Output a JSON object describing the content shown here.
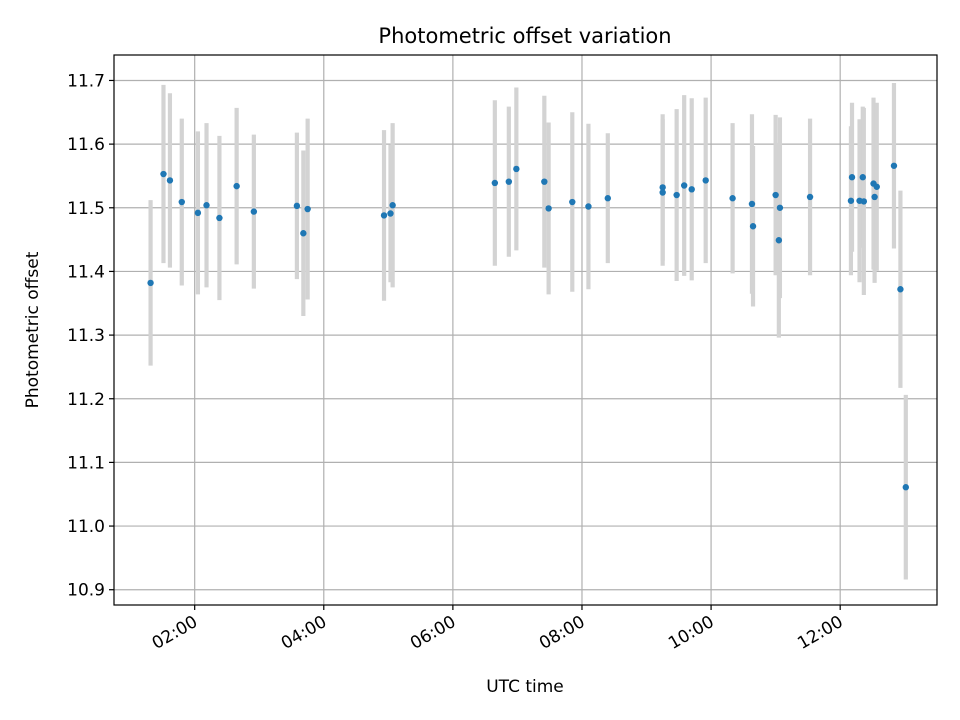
{
  "chart_data": {
    "type": "scatter",
    "title": "Photometric offset variation",
    "xlabel": "UTC time",
    "ylabel": "Photometric offset",
    "x_ticks": [
      "02:00",
      "04:00",
      "06:00",
      "08:00",
      "10:00",
      "12:00"
    ],
    "y_ticks": [
      "10.9",
      "11.0",
      "11.1",
      "11.2",
      "11.3",
      "11.4",
      "11.5",
      "11.6",
      "11.7"
    ],
    "xlim": [
      "00:45",
      "13:30"
    ],
    "ylim": [
      10.876,
      11.74
    ],
    "grid": true,
    "error_bar_color": "#d3d3d3",
    "point_color": "#1f77b4",
    "series": [
      {
        "x": [
          "01:19",
          "01:31",
          "01:37",
          "01:48",
          "02:03",
          "02:11",
          "02:23",
          "02:39",
          "02:55",
          "03:35",
          "03:41",
          "03:45",
          "04:56",
          "05:02",
          "05:04",
          "06:39",
          "06:52",
          "06:59",
          "07:25",
          "07:29",
          "07:51",
          "08:06",
          "08:24",
          "09:15",
          "09:15",
          "09:28",
          "09:35",
          "09:42",
          "09:55",
          "10:20",
          "10:38",
          "10:39",
          "11:00",
          "11:03",
          "11:04",
          "11:32",
          "12:10",
          "12:11",
          "12:18",
          "12:21",
          "12:22",
          "12:31",
          "12:32",
          "12:34",
          "12:50",
          "12:56",
          "13:01"
        ],
        "y": [
          11.382,
          11.553,
          11.543,
          11.509,
          11.492,
          11.504,
          11.484,
          11.534,
          11.494,
          11.503,
          11.46,
          11.498,
          11.488,
          11.491,
          11.504,
          11.539,
          11.541,
          11.561,
          11.541,
          11.499,
          11.509,
          11.502,
          11.515,
          11.532,
          11.524,
          11.52,
          11.535,
          11.529,
          11.543,
          11.515,
          11.506,
          11.471,
          11.52,
          11.449,
          11.5,
          11.517,
          11.511,
          11.548,
          11.511,
          11.548,
          11.51,
          11.538,
          11.517,
          11.533,
          11.566,
          11.372,
          11.061
        ],
        "err": [
          0.13,
          0.14,
          0.137,
          0.131,
          0.128,
          0.129,
          0.129,
          0.123,
          0.121,
          0.115,
          0.13,
          0.142,
          0.134,
          0.108,
          0.129,
          0.13,
          0.118,
          0.128,
          0.135,
          0.135,
          0.141,
          0.13,
          0.102,
          0.115,
          0.115,
          0.135,
          0.142,
          0.143,
          0.13,
          0.118,
          0.141,
          0.126,
          0.126,
          0.153,
          0.142,
          0.123,
          0.117,
          0.117,
          0.128,
          0.111,
          0.147,
          0.135,
          0.135,
          0.132,
          0.13,
          0.155,
          0.145
        ]
      }
    ]
  }
}
